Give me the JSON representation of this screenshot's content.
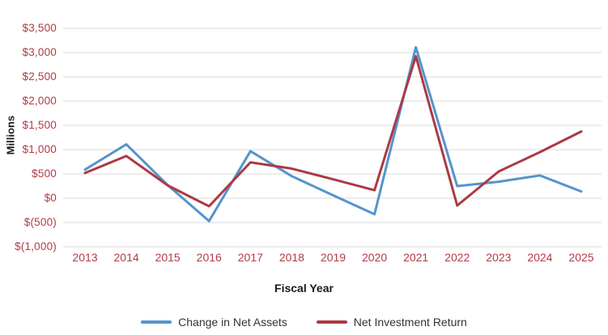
{
  "chart_data": {
    "type": "line",
    "title": "",
    "xlabel": "Fiscal Year",
    "ylabel": "Millions",
    "categories": [
      "2013",
      "2014",
      "2015",
      "2016",
      "2017",
      "2018",
      "2019",
      "2020",
      "2021",
      "2022",
      "2023",
      "2024",
      "2025"
    ],
    "series": [
      {
        "name": "Change in Net Assets",
        "color": "#5494CE",
        "values": [
          590,
          1110,
          270,
          -470,
          970,
          455,
          60,
          -330,
          3110,
          250,
          340,
          470,
          140
        ]
      },
      {
        "name": "Net Investment Return",
        "color": "#AB3A44",
        "values": [
          520,
          870,
          265,
          -165,
          740,
          610,
          390,
          165,
          2925,
          -150,
          550,
          950,
          1375
        ]
      }
    ],
    "ylim": [
      -1000,
      3500
    ],
    "y_ticks": [
      {
        "label": "$3,500",
        "value": 3500
      },
      {
        "label": "$3,000",
        "value": 3000
      },
      {
        "label": "$2,500",
        "value": 2500
      },
      {
        "label": "$2,000",
        "value": 2000
      },
      {
        "label": "$1,500",
        "value": 1500
      },
      {
        "label": "$1,000",
        "value": 1000
      },
      {
        "label": "$500",
        "value": 500
      },
      {
        "label": "$0",
        "value": 0
      },
      {
        "label": "$(500)",
        "value": -500
      },
      {
        "label": "$(1,000)",
        "value": -1000
      }
    ],
    "grid": "horizontal",
    "legend_position": "bottom"
  },
  "colors": {
    "tick_label": "#B23B44",
    "gridline": "#D9D9D9"
  }
}
